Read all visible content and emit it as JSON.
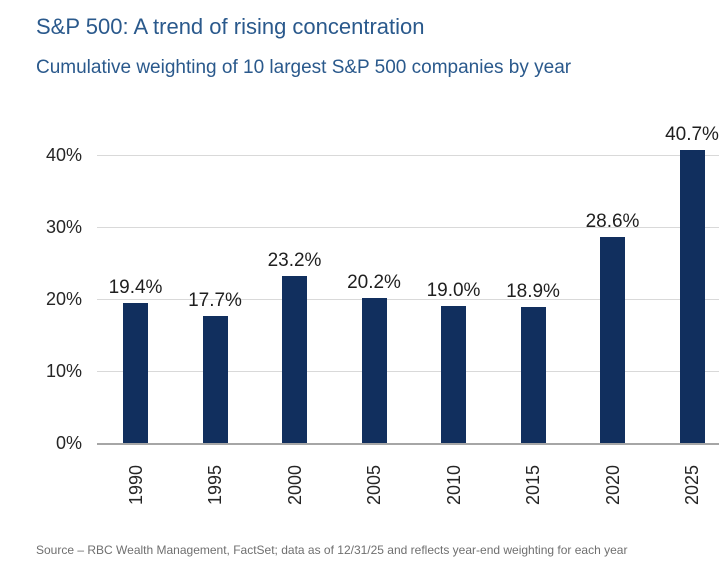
{
  "header": {
    "title": "S&P 500: A trend of rising concentration",
    "subtitle": "Cumulative weighting of 10 largest S&P 500 companies by year"
  },
  "source": "Source – RBC Wealth Management, FactSet; data as of 12/31/25 and reflects year-end weighting for each year",
  "colors": {
    "bar": "#112f5e",
    "title_blue": "#2a598c",
    "gridline": "#d9d9d9",
    "axis_line": "#a6a6a6",
    "tick_text": "#262626",
    "source_gray": "#6f6f6f"
  },
  "chart_data": {
    "type": "bar",
    "title": "S&P 500: A trend of rising concentration",
    "subtitle": "Cumulative weighting of 10 largest S&P 500 companies by year",
    "categories": [
      "1990",
      "1995",
      "2000",
      "2005",
      "2010",
      "2015",
      "2020",
      "2025"
    ],
    "values": [
      19.4,
      17.7,
      23.2,
      20.2,
      19.0,
      18.9,
      28.6,
      40.7
    ],
    "data_labels": [
      "19.4%",
      "17.7%",
      "23.2%",
      "20.2%",
      "19.0%",
      "18.9%",
      "28.6%",
      "40.7%"
    ],
    "xlabel": "",
    "ylabel": "",
    "ylim": [
      0,
      44
    ],
    "yticks": [
      0,
      10,
      20,
      30,
      40
    ],
    "ytick_labels": [
      "0%",
      "10%",
      "20%",
      "30%",
      "40%"
    ],
    "grid": "horizontal",
    "legend": "none",
    "x_tick_rotation": -90
  }
}
